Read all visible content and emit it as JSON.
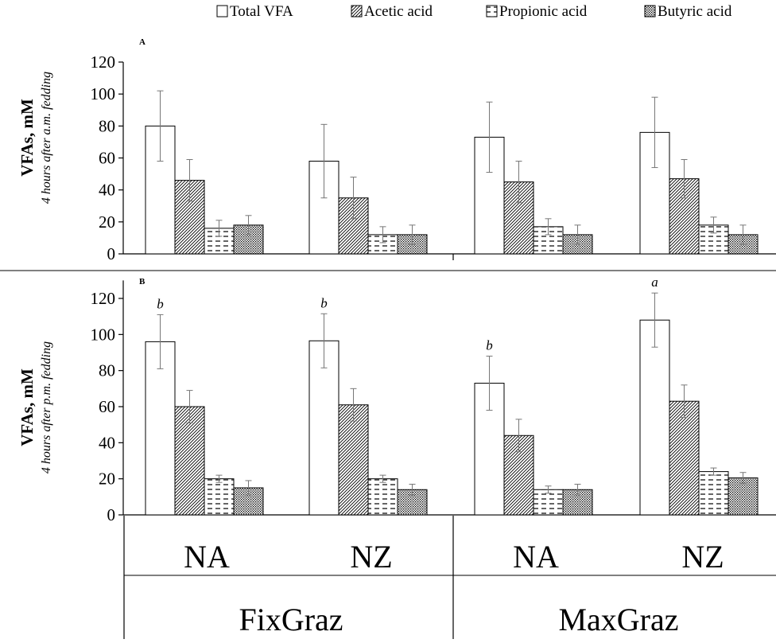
{
  "legend": {
    "items": [
      {
        "label": "Total VFA",
        "pattern": "none"
      },
      {
        "label": "Acetic acid",
        "pattern": "hatch"
      },
      {
        "label": "Propionic acid",
        "pattern": "dash"
      },
      {
        "label": "Butyric acid",
        "pattern": "dots"
      }
    ]
  },
  "x_axis": {
    "group_labels": [
      "NA",
      "NZ",
      "NA",
      "NZ"
    ],
    "system_labels": [
      "FixGraz",
      "MaxGraz"
    ]
  },
  "chart_data": [
    {
      "type": "bar",
      "panel_label": "A",
      "ylabel": "VFAs, mM",
      "ylabel_sub": "4 hours after a.m. fedding",
      "ylim": [
        0,
        120
      ],
      "yticks": [
        0,
        20,
        40,
        60,
        80,
        100,
        120
      ],
      "categories": [
        "NA",
        "NZ",
        "NA",
        "NZ"
      ],
      "series": [
        {
          "name": "Total VFA",
          "values": [
            80,
            58,
            73,
            76
          ],
          "errors": [
            22,
            23,
            22,
            22
          ]
        },
        {
          "name": "Acetic acid",
          "values": [
            46,
            35,
            45,
            47
          ],
          "errors": [
            13,
            13,
            13,
            12
          ]
        },
        {
          "name": "Propionic acid",
          "values": [
            16,
            12,
            17,
            18
          ],
          "errors": [
            5,
            5,
            5,
            5
          ]
        },
        {
          "name": "Butyric acid",
          "values": [
            18,
            12,
            12,
            12
          ],
          "errors": [
            6,
            6,
            6,
            6
          ]
        }
      ],
      "annotations": []
    },
    {
      "type": "bar",
      "panel_label": "B",
      "ylabel": "VFAs, mM",
      "ylabel_sub": "4 hours after p.m. fedding",
      "ylim": [
        0,
        130
      ],
      "yticks": [
        0,
        20,
        40,
        60,
        80,
        100,
        120
      ],
      "categories": [
        "NA",
        "NZ",
        "NA",
        "NZ"
      ],
      "series": [
        {
          "name": "Total VFA",
          "values": [
            96,
            96.5,
            73,
            108
          ],
          "errors": [
            15,
            15,
            15,
            15
          ]
        },
        {
          "name": "Acetic acid",
          "values": [
            60,
            61,
            44,
            63
          ],
          "errors": [
            9,
            9,
            9,
            9
          ]
        },
        {
          "name": "Propionic acid",
          "values": [
            20,
            20,
            14,
            24
          ],
          "errors": [
            2,
            2,
            2,
            2
          ]
        },
        {
          "name": "Butyric acid",
          "values": [
            15,
            14,
            14,
            20.5
          ],
          "errors": [
            4,
            3,
            3,
            3
          ]
        }
      ],
      "annotations": [
        {
          "group": 0,
          "series": 0,
          "text": "b"
        },
        {
          "group": 1,
          "series": 0,
          "text": "b"
        },
        {
          "group": 2,
          "series": 0,
          "text": "b"
        },
        {
          "group": 3,
          "series": 0,
          "text": "a"
        }
      ]
    }
  ]
}
